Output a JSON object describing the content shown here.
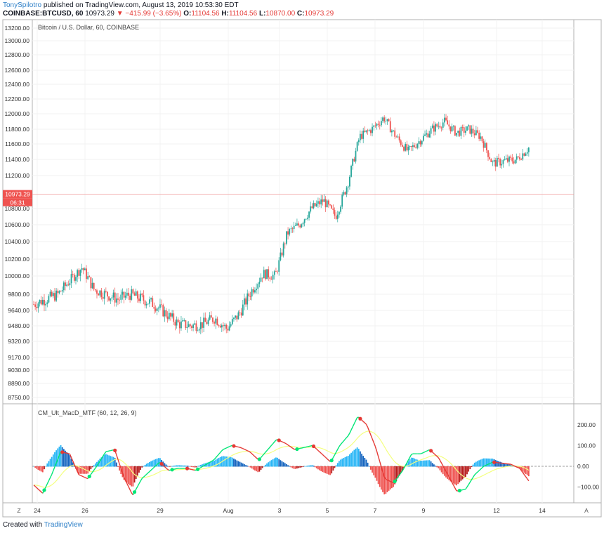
{
  "header": {
    "author": "TonySpilotro",
    "published_text": "published on TradingView.com, August 13, 2019 10:53:30 EDT",
    "symbol": "COINBASE:BTCUSD, 60",
    "last": "10973.29",
    "change": "▼ −415.99 (−3.65%)",
    "o_label": "O:",
    "o_val": "11104.56",
    "h_label": "H:",
    "h_val": "11104.56",
    "l_label": "L:",
    "l_val": "10870.00",
    "c_label": "C:",
    "c_val": "10973.29"
  },
  "main_pane": {
    "legend": "Bitcoin / U.S. Dollar, 60, COINBASE",
    "price_axis_labels": [
      "13200.00",
      "13000.00",
      "12800.00",
      "12600.00",
      "12400.00",
      "12200.00",
      "12000.00",
      "11800.00",
      "11600.00",
      "11400.00",
      "11200.00",
      "10800.00",
      "10600.00",
      "10400.00",
      "10200.00",
      "10000.00",
      "9800.00",
      "9640.00",
      "9480.00",
      "9320.00",
      "9170.00",
      "9030.00",
      "8890.00",
      "8750.00"
    ],
    "last_price_label": "10973.29",
    "countdown_label": "06:31"
  },
  "indicator_pane": {
    "legend": "CM_Ult_MacD_MTF (60, 12, 26, 9)",
    "axis_labels": [
      "200.00",
      "100.00",
      "0.00",
      "−100.00"
    ]
  },
  "time_axis": {
    "labels": [
      "24",
      "26",
      "29",
      "Aug",
      "3",
      "5",
      "7",
      "9",
      "12",
      "14"
    ]
  },
  "corner_left": "Z",
  "corner_right": "A",
  "footer": {
    "created_with": "Created with",
    "brand": "TradingView"
  },
  "colors": {
    "up": "#26a69a",
    "down": "#ef5350",
    "macd_up": "#00e676",
    "macd_down": "#e53935",
    "signal": "#f4ff81",
    "hist_up_light": "#29b6f6",
    "hist_up_dark": "#1565c0",
    "hist_down_light": "#ef5350",
    "hist_down_dark": "#b71c1c"
  },
  "chart_data": [
    {
      "type": "candlestick",
      "title": "Bitcoin / U.S. Dollar, 60, COINBASE",
      "ylim": [
        8700,
        13300
      ],
      "x_ticks": [
        "24",
        "26",
        "29",
        "Aug",
        "3",
        "5",
        "7",
        "9",
        "12",
        "14"
      ],
      "series": [
        {
          "name": "Bitcoin / U.S. Dollar",
          "x": [
            0,
            2,
            4,
            5,
            7,
            8,
            10,
            12,
            13,
            14,
            15,
            16,
            17,
            18,
            19,
            20,
            21,
            22,
            23,
            24,
            25,
            26,
            27,
            28,
            29,
            30,
            31,
            33,
            34,
            35,
            36,
            37,
            38,
            39,
            40,
            41,
            42,
            43,
            44,
            45,
            46,
            47,
            48,
            49,
            50,
            51,
            52,
            53
          ],
          "close": [
            9700,
            9800,
            10100,
            9850,
            9750,
            9800,
            9700,
            9500,
            9480,
            9500,
            9560,
            9450,
            9600,
            9830,
            10030,
            10000,
            10500,
            10600,
            10800,
            10900,
            10700,
            11100,
            11700,
            11800,
            11950,
            11700,
            11500,
            11800,
            11900,
            11750,
            11800,
            11700,
            11350,
            11380,
            11400,
            11550,
            11380,
            11420,
            11300,
            11200,
            11050,
            10973,
            10973,
            10973,
            10973,
            10973,
            10973,
            10973
          ]
        }
      ]
    },
    {
      "type": "line",
      "title": "CM_Ult_MacD_MTF (60, 12, 26, 9)",
      "ylim": [
        -150,
        250
      ],
      "series": [
        {
          "name": "MACD",
          "x": [
            0,
            1,
            2,
            3,
            4,
            5,
            6,
            7,
            8,
            9,
            10,
            11,
            12,
            13,
            14,
            15,
            16,
            17,
            18,
            19,
            20,
            21,
            22,
            23,
            24,
            25,
            26,
            27,
            28,
            29,
            30,
            31,
            32,
            33,
            34,
            35,
            36,
            37,
            38,
            39,
            40,
            41,
            42,
            43,
            44,
            45,
            46,
            47,
            48,
            49,
            50,
            51,
            52,
            53,
            54,
            55
          ],
          "values": [
            -90,
            -130,
            -40,
            70,
            60,
            -40,
            -60,
            0,
            70,
            80,
            -50,
            -140,
            -60,
            -20,
            20,
            -20,
            -10,
            -10,
            -20,
            5,
            30,
            80,
            100,
            90,
            70,
            30,
            80,
            130,
            110,
            80,
            90,
            100,
            60,
            20,
            100,
            150,
            240,
            200,
            90,
            -60,
            -80,
            -20,
            60,
            60,
            80,
            40,
            -40,
            -120,
            -110,
            -40,
            0,
            20,
            15,
            10,
            -10,
            -70
          ]
        }
      ]
    }
  ]
}
